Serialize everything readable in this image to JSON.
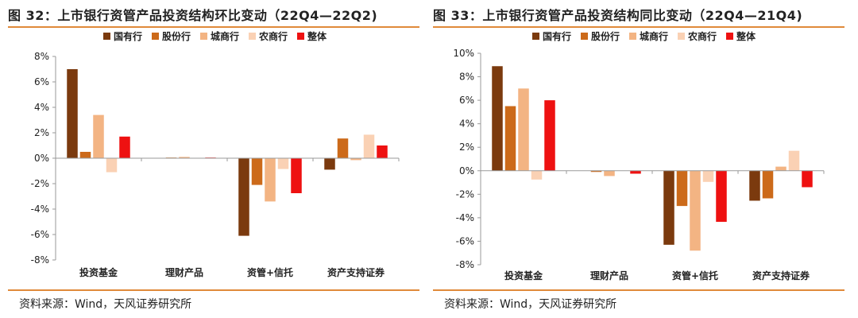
{
  "charts": [
    {
      "title": "图 32：上市银行资管产品投资结构环比变动（22Q4—22Q2)",
      "source": "资料来源：Wind，天风证券研究所",
      "legend": [
        "国有行",
        "股份行",
        "城商行",
        "农商行",
        "整体"
      ]
    },
    {
      "title": "图 33：上市银行资管产品投资结构同比变动（22Q4—21Q4)",
      "source": "资料来源：Wind，天风证券研究所",
      "legend": [
        "国有行",
        "股份行",
        "城商行",
        "农商行",
        "整体"
      ]
    }
  ],
  "colors": [
    "#7b3a0e",
    "#cc6a1a",
    "#f3b483",
    "#fad1b4",
    "#ee1111"
  ],
  "chart_data": [
    {
      "type": "bar",
      "categories": [
        "投资基金",
        "理财产品",
        "资管+信托",
        "资产支持证券"
      ],
      "series": [
        {
          "name": "国有行",
          "values": [
            7.0,
            0.0,
            -6.1,
            -0.9
          ]
        },
        {
          "name": "股份行",
          "values": [
            0.5,
            0.05,
            -2.1,
            1.55
          ]
        },
        {
          "name": "城商行",
          "values": [
            3.4,
            0.1,
            -3.4,
            -0.15
          ]
        },
        {
          "name": "农商行",
          "values": [
            -1.1,
            0.0,
            -0.85,
            1.85
          ]
        },
        {
          "name": "整体",
          "values": [
            1.7,
            0.05,
            -2.75,
            1.0
          ]
        }
      ],
      "ylim": [
        -8,
        8
      ],
      "yticks": [
        "8%",
        "6%",
        "4%",
        "2%",
        "0%",
        "-2%",
        "-4%",
        "-6%",
        "-8%"
      ],
      "ytick_values": [
        8,
        6,
        4,
        2,
        0,
        -2,
        -4,
        -6,
        -8
      ]
    },
    {
      "type": "bar",
      "categories": [
        "投资基金",
        "理财产品",
        "资管+信托",
        "资产支持证券"
      ],
      "series": [
        {
          "name": "国有行",
          "values": [
            8.9,
            0.0,
            -6.3,
            -2.55
          ]
        },
        {
          "name": "股份行",
          "values": [
            5.5,
            -0.1,
            -3.0,
            -2.35
          ]
        },
        {
          "name": "城商行",
          "values": [
            7.0,
            -0.45,
            -6.8,
            0.35
          ]
        },
        {
          "name": "农商行",
          "values": [
            -0.75,
            0.0,
            -0.95,
            1.7
          ]
        },
        {
          "name": "整体",
          "values": [
            6.0,
            -0.25,
            -4.35,
            -1.4
          ]
        }
      ],
      "ylim": [
        -8,
        10
      ],
      "yticks": [
        "10%",
        "8%",
        "6%",
        "4%",
        "2%",
        "0%",
        "-2%",
        "-4%",
        "-6%",
        "-8%"
      ],
      "ytick_values": [
        10,
        8,
        6,
        4,
        2,
        0,
        -2,
        -4,
        -6,
        -8
      ]
    }
  ]
}
